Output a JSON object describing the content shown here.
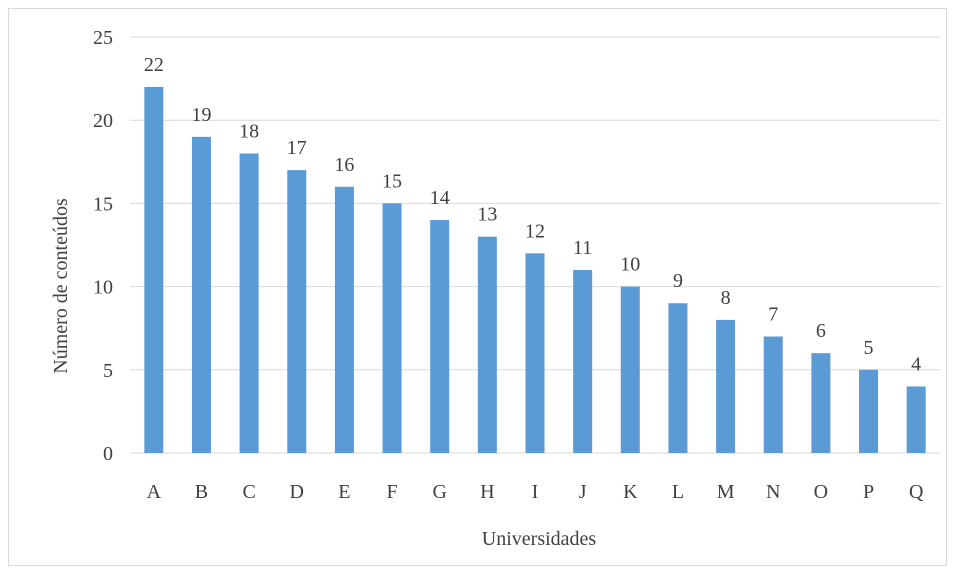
{
  "chart_data": {
    "type": "bar",
    "categories": [
      "A",
      "B",
      "C",
      "D",
      "E",
      "F",
      "G",
      "H",
      "I",
      "J",
      "K",
      "L",
      "M",
      "N",
      "O",
      "P",
      "Q"
    ],
    "values": [
      22,
      19,
      18,
      17,
      16,
      15,
      14,
      13,
      12,
      11,
      10,
      9,
      8,
      7,
      6,
      5,
      4
    ],
    "title": "",
    "xlabel": "Universidades",
    "ylabel": "Número de conteúdos",
    "ylim": [
      0,
      25
    ],
    "yticks": [
      0,
      5,
      10,
      15,
      20,
      25
    ],
    "grid": true,
    "data_labels": true,
    "bar_color": "#5b9bd5",
    "grid_color": "#d9d9d9",
    "text_color": "#404040"
  }
}
